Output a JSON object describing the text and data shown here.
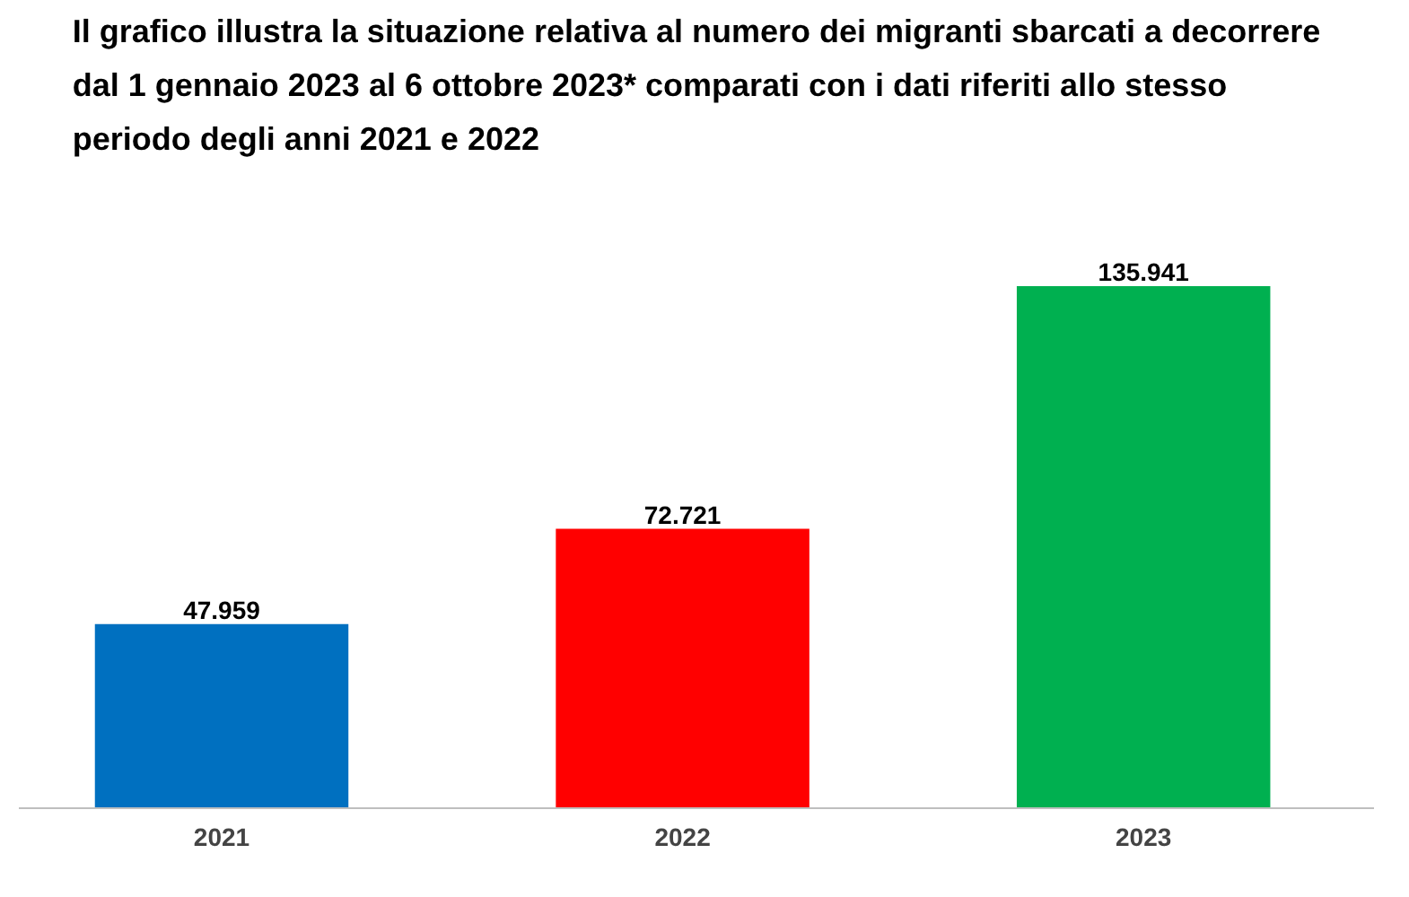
{
  "chart_data": {
    "type": "bar",
    "title": "Il grafico illustra la situazione relativa al numero dei migranti sbarcati a decorrere dal 1 gennaio 2023 al 6 ottobre 2023* comparati con i dati riferiti allo stesso periodo degli anni 2021 e 2022",
    "categories": [
      "2021",
      "2022",
      "2023"
    ],
    "values": [
      47959,
      72721,
      135941
    ],
    "colors": [
      "#0070c0",
      "#ff0000",
      "#00b050"
    ],
    "value_labels": [
      "47.959",
      "72.721",
      "135.941"
    ],
    "grid": false
  }
}
